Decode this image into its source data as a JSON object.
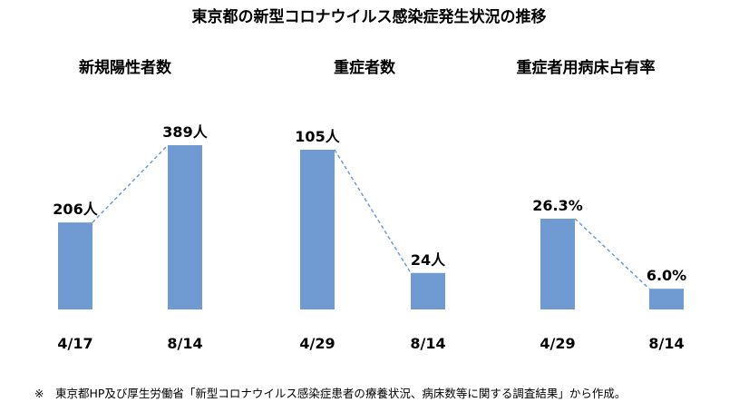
{
  "title": "東京都の新型コロナウイルス感染症発生状況の推移",
  "footnote": "※　東京都HP及び厚生労働省「新型コロナウイルス感染症患者の療養状況、病床数等に関する調査結果」から作成。",
  "colors": {
    "bar": "#6f9bd2",
    "connector": "#6f9bd2",
    "text": "#000000"
  },
  "chart_data": [
    {
      "type": "bar",
      "title": "新規陽性者数",
      "categories": [
        "4/17",
        "8/14"
      ],
      "values": [
        206,
        389
      ],
      "data_labels": [
        "206人",
        "389人"
      ],
      "connector": "dashed-line",
      "grid": false
    },
    {
      "type": "bar",
      "title": "重症者数",
      "categories": [
        "4/29",
        "8/14"
      ],
      "values": [
        105,
        24
      ],
      "data_labels": [
        "105人",
        "24人"
      ],
      "connector": "dashed-line",
      "grid": false
    },
    {
      "type": "bar",
      "title": "重症者用病床占有率",
      "categories": [
        "4/29",
        "8/14"
      ],
      "values": [
        26.3,
        6.0
      ],
      "data_labels": [
        "26.3%",
        "6.0%"
      ],
      "connector": "dashed-line",
      "grid": false
    }
  ]
}
